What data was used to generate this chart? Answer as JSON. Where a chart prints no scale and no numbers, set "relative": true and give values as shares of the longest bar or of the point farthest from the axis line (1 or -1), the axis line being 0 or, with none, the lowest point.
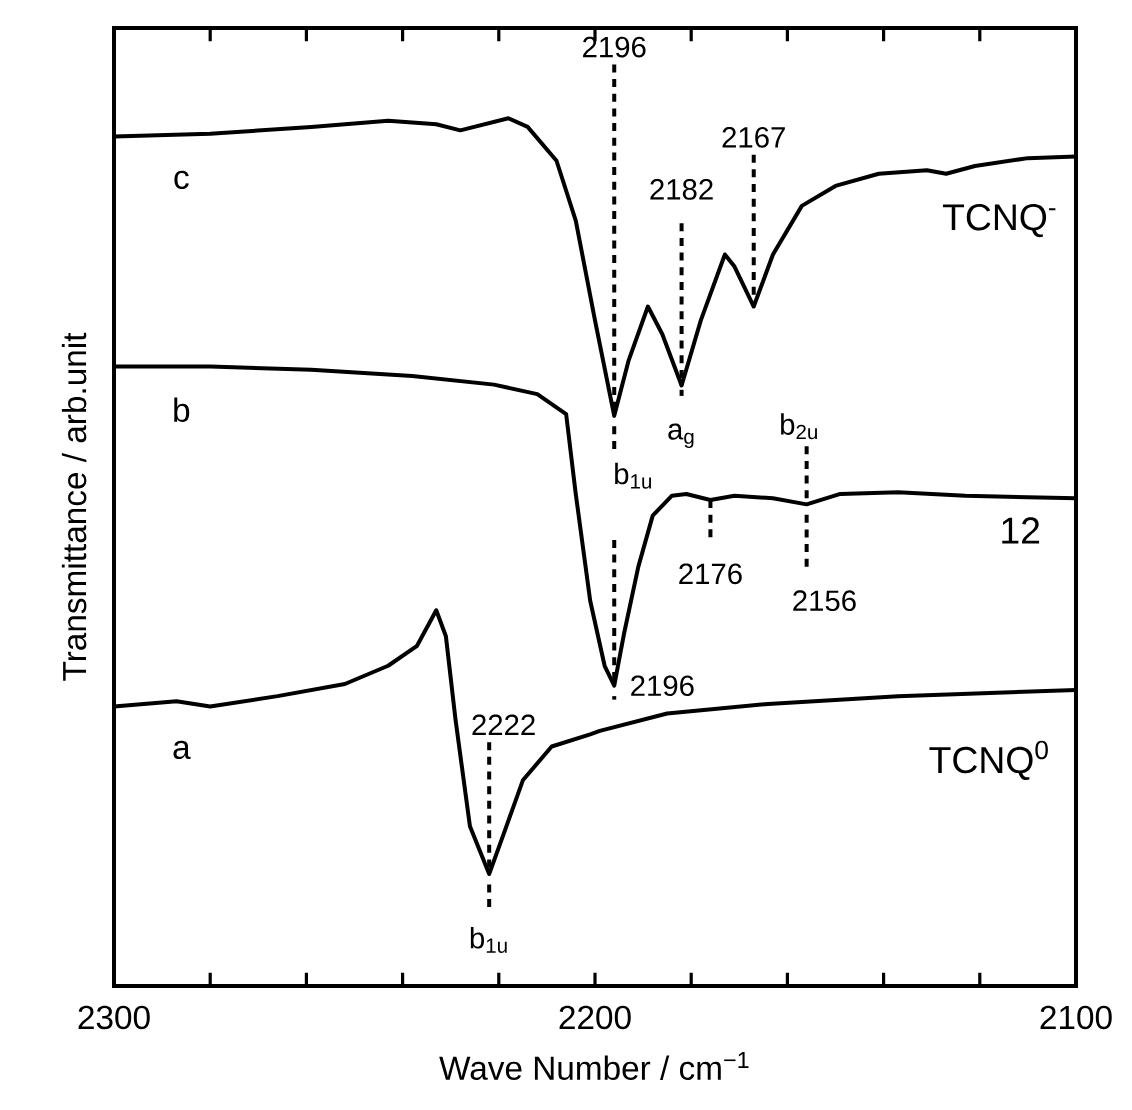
{
  "chart_data": {
    "type": "line",
    "xlabel": "Wave Number / cm$^{−1}$",
    "ylabel": "Transmittance / arb.unit",
    "relative": true,
    "xlim": [
      2300,
      2100
    ],
    "xticks": [
      2300,
      {
        "value": 2280,
        "label": null
      },
      {
        "value": 2260,
        "label": null
      },
      {
        "value": 2240,
        "label": null
      },
      {
        "value": 2220,
        "label": null
      },
      2200,
      {
        "value": 2180,
        "label": null
      },
      {
        "value": 2160,
        "label": null
      },
      {
        "value": 2140,
        "label": null
      },
      {
        "value": 2120,
        "label": null
      },
      2100
    ],
    "series": [
      {
        "name": "c",
        "color": "#000000",
        "x": [
          2300,
          2280,
          2259,
          2243,
          2233,
          2228,
          2223,
          2218,
          2214,
          2208,
          2204,
          2200,
          2196,
          2193,
          2189,
          2186,
          2182,
          2178,
          2173,
          2171,
          2167,
          2163,
          2157,
          2150,
          2141,
          2131,
          2127,
          2121,
          2110,
          2100
        ],
        "values": [
          0.979,
          0.982,
          0.99,
          0.997,
          0.993,
          0.986,
          0.993,
          1.0,
          0.99,
          0.951,
          0.882,
          0.767,
          0.657,
          0.721,
          0.783,
          0.751,
          0.692,
          0.767,
          0.843,
          0.829,
          0.783,
          0.843,
          0.899,
          0.922,
          0.936,
          0.94,
          0.936,
          0.945,
          0.954,
          0.956
        ]
      },
      {
        "name": "b",
        "color": "#000000",
        "x": [
          2300,
          2280,
          2259,
          2238,
          2221,
          2212,
          2206,
          2204,
          2201,
          2198,
          2196,
          2194,
          2191,
          2188,
          2184,
          2181,
          2176,
          2171,
          2163,
          2156,
          2149,
          2137,
          2123,
          2100
        ],
        "values": [
          0.714,
          0.714,
          0.71,
          0.703,
          0.693,
          0.682,
          0.659,
          0.567,
          0.444,
          0.369,
          0.346,
          0.405,
          0.483,
          0.542,
          0.565,
          0.567,
          0.56,
          0.565,
          0.562,
          0.555,
          0.567,
          0.569,
          0.565,
          0.562
        ]
      },
      {
        "name": "a",
        "color": "#000000",
        "x": [
          2300,
          2287,
          2280,
          2266,
          2252,
          2243,
          2237,
          2233,
          2231,
          2229,
          2226,
          2222,
          2219,
          2215,
          2209,
          2201,
          2199,
          2185,
          2164,
          2137,
          2100
        ],
        "values": [
          0.322,
          0.328,
          0.322,
          0.334,
          0.348,
          0.369,
          0.392,
          0.433,
          0.403,
          0.307,
          0.184,
          0.129,
          0.175,
          0.237,
          0.276,
          0.29,
          0.294,
          0.314,
          0.325,
          0.334,
          0.341
        ]
      }
    ],
    "annotations": [
      {
        "text": "2196",
        "x": 2196,
        "y": 0.657
      },
      {
        "text": "b$_{1u}$",
        "x": 2196,
        "y": 0.657
      },
      {
        "text": "2182",
        "x": 2182,
        "y": 0.692
      },
      {
        "text": "a$_{g}$",
        "x": 2182,
        "y": 0.692
      },
      {
        "text": "2167",
        "x": 2167,
        "y": 0.783
      },
      {
        "text": "2176",
        "x": 2176,
        "y": 0.56
      },
      {
        "text": "2156",
        "x": 2156,
        "y": 0.555
      },
      {
        "text": "b$_{2u}$",
        "x": 2156,
        "y": 0.555
      },
      {
        "text": "2196",
        "x": 2196,
        "y": 0.346
      },
      {
        "text": "2222",
        "x": 2222,
        "y": 0.129
      },
      {
        "text": "b$_{1u}$",
        "x": 2222,
        "y": 0.129
      },
      "TCNQ$^{-}$",
      "12",
      "TCNQ$^{0}$"
    ]
  }
}
